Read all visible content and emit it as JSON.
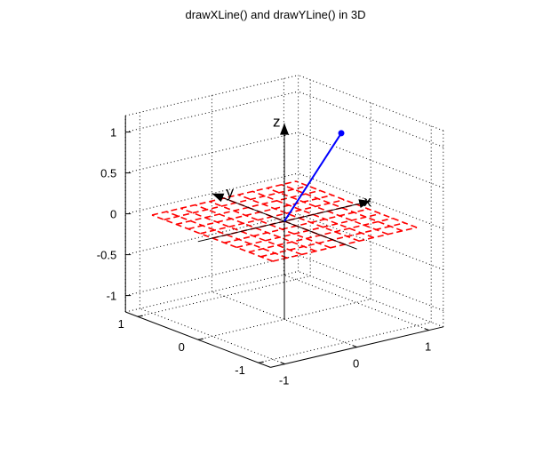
{
  "chart_data": {
    "type": "3d-line",
    "title": "drawXLine() and drawYLine() in 3D",
    "xlim": [
      -1.2,
      1.2
    ],
    "ylim": [
      -1.2,
      1.2
    ],
    "zlim": [
      -1.2,
      1.2
    ],
    "x_ticks": [
      {
        "value": -1,
        "label": "-1"
      },
      {
        "value": 0,
        "label": "0"
      },
      {
        "value": 1,
        "label": "1"
      }
    ],
    "y_ticks": [
      {
        "value": -1,
        "label": "-1"
      },
      {
        "value": 0,
        "label": "0"
      },
      {
        "value": 1,
        "label": "1"
      }
    ],
    "z_ticks": [
      {
        "value": -1,
        "label": "-1"
      },
      {
        "value": -0.5,
        "label": "-0.5"
      },
      {
        "value": 0,
        "label": "0"
      },
      {
        "value": 0.5,
        "label": "0.5"
      },
      {
        "value": 1,
        "label": "1"
      }
    ],
    "grid": true,
    "axis_arrows": [
      {
        "name": "x-arrow",
        "label": "x"
      },
      {
        "name": "y-arrow",
        "label": "y"
      },
      {
        "name": "z-arrow",
        "label": "z"
      }
    ],
    "vector": {
      "from": [
        0,
        0,
        0
      ],
      "to": [
        1,
        0.25,
        0.8
      ],
      "color": "#0000ff"
    },
    "dash_grid": {
      "plane_z": 0,
      "min": -1,
      "max": 1,
      "step": 0.2,
      "color": "#ff0000"
    },
    "colors": {
      "axes": "#000000",
      "grid": "#000000",
      "dashes": "#ff0000",
      "vector": "#0000ff"
    }
  }
}
